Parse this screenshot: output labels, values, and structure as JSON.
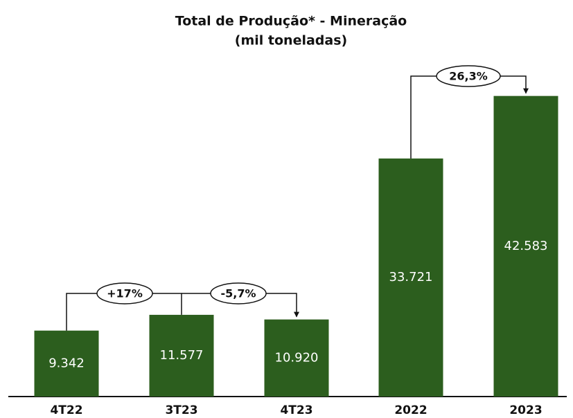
{
  "chart_data": {
    "type": "bar",
    "title": "Total de Produção* - Mineração",
    "subtitle": "(mil toneladas)",
    "categories": [
      "4T22",
      "3T23",
      "4T23",
      "2022",
      "2023"
    ],
    "values": [
      9342,
      11577,
      10920,
      33721,
      42583
    ],
    "value_labels": [
      "9.342",
      "11.577",
      "10.920",
      "33.721",
      "42.583"
    ],
    "color": "#2c5e1e",
    "ylim": [
      0,
      45000
    ],
    "annotations": [
      "+17%",
      "-5,7%",
      "26,3%"
    ]
  }
}
